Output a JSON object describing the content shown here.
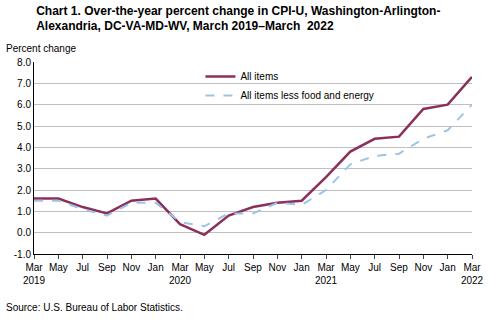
{
  "chart_data": {
    "type": "line",
    "title": "Chart 1. Over-the-year percent change in CPI-U, Washington-Arlington-\nAlexandria, DC-VA-MD-WV, March 2019–March  2022",
    "y_label": "Percent change",
    "source": "Source: U.S. Bureau of Labor Statistics.",
    "categories": [
      "Mar\n2019",
      "May",
      "Jul",
      "Sep",
      "Nov",
      "Jan",
      "Mar\n2020",
      "May",
      "Jul",
      "Sep",
      "Nov",
      "Jan",
      "Mar\n2021",
      "May",
      "Jul",
      "Sep",
      "Nov",
      "Jan",
      "Mar\n2022"
    ],
    "series": [
      {
        "name": "All items",
        "color": "#8c2f5a",
        "line_style": "solid",
        "values": [
          1.6,
          1.6,
          1.2,
          0.9,
          1.5,
          1.6,
          0.4,
          -0.1,
          0.8,
          1.2,
          1.4,
          1.5,
          2.6,
          3.8,
          4.4,
          4.5,
          5.8,
          6.0,
          7.3
        ]
      },
      {
        "name": "All items less food and energy",
        "color": "#9dc3e6",
        "line_style": "dash",
        "values": [
          1.5,
          1.5,
          1.1,
          0.8,
          1.4,
          1.4,
          0.5,
          0.3,
          0.9,
          0.9,
          1.4,
          1.3,
          2.0,
          3.2,
          3.6,
          3.7,
          4.4,
          4.8,
          6.0
        ]
      }
    ],
    "ylim": [
      -1,
      8
    ],
    "yticks": [
      {
        "value": -1,
        "label": "-1.0"
      },
      {
        "value": 0,
        "label": "0.0"
      },
      {
        "value": 1,
        "label": "1.0"
      },
      {
        "value": 2,
        "label": "2.0"
      },
      {
        "value": 3,
        "label": "3.0"
      },
      {
        "value": 4,
        "label": "4.0"
      },
      {
        "value": 5,
        "label": "5.0"
      },
      {
        "value": 6,
        "label": "6.0"
      },
      {
        "value": 7,
        "label": "7.0"
      },
      {
        "value": 8,
        "label": "8.0"
      }
    ],
    "grid": true,
    "legend": "top"
  }
}
